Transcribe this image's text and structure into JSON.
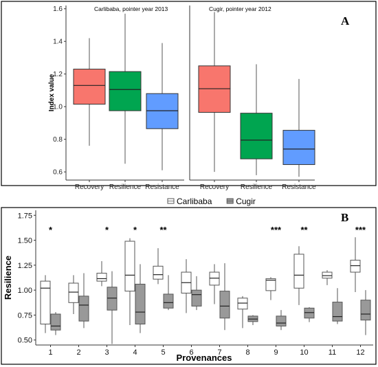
{
  "chart_data": [
    {
      "panel": "A",
      "type": "box",
      "ylabel": "Index value",
      "ylim": [
        0.55,
        1.62
      ],
      "yticks": [
        "0.6",
        "0.8",
        "1.0",
        "1.2",
        "1.4",
        "1.6"
      ],
      "colors": {
        "Recovery": "#f8766d",
        "Resilience": "#00a550",
        "Resistance": "#619cff"
      },
      "groups": [
        {
          "title": "Carlibaba, pointer year 2013",
          "categories": [
            "Recovery",
            "Resilience",
            "Resistance"
          ],
          "boxes": [
            {
              "name": "Recovery",
              "min": 0.76,
              "q1": 1.015,
              "median": 1.13,
              "q3": 1.23,
              "max": 1.42
            },
            {
              "name": "Resilience",
              "min": 0.65,
              "q1": 0.975,
              "median": 1.105,
              "q3": 1.215,
              "max": 1.57
            },
            {
              "name": "Resistance",
              "min": 0.61,
              "q1": 0.865,
              "median": 0.975,
              "q3": 1.08,
              "max": 1.39
            }
          ]
        },
        {
          "title": "Cugir, pointer year 2012",
          "categories": [
            "Recovery",
            "Resilience",
            "Resistance"
          ],
          "boxes": [
            {
              "name": "Recovery",
              "min": 0.6,
              "q1": 0.965,
              "median": 1.11,
              "q3": 1.25,
              "max": 1.58
            },
            {
              "name": "Resilience",
              "min": 0.58,
              "q1": 0.68,
              "median": 0.795,
              "q3": 0.96,
              "max": 1.26
            },
            {
              "name": "Resistance",
              "min": 0.57,
              "q1": 0.645,
              "median": 0.74,
              "q3": 0.855,
              "max": 1.17
            }
          ]
        }
      ]
    },
    {
      "panel": "B",
      "type": "box",
      "xlabel": "Provenances",
      "ylabel": "Resilience",
      "ylim": [
        0.45,
        1.8
      ],
      "yticks": [
        "0.50",
        "0.75",
        "1.00",
        "1.25",
        "1.50",
        "1.75"
      ],
      "categories": [
        "1",
        "2",
        "3",
        "4",
        "5",
        "6",
        "7",
        "8",
        "9",
        "10",
        "11",
        "12"
      ],
      "legend": {
        "position": "top-center",
        "entries": [
          "Carlibaba",
          "Cugir"
        ]
      },
      "colors": {
        "Carlibaba": "#ffffff",
        "Cugir": "#999999"
      },
      "significance": [
        "*",
        "",
        "*",
        "*",
        "**",
        "",
        "",
        "",
        "***",
        "**",
        "",
        "***"
      ],
      "series": [
        {
          "name": "Carlibaba",
          "boxes": [
            {
              "min": 0.57,
              "q1": 0.66,
              "median": 1.02,
              "q3": 1.09,
              "max": 1.15
            },
            {
              "min": 0.76,
              "q1": 0.875,
              "median": 0.98,
              "q3": 1.07,
              "max": 1.15
            },
            {
              "min": 1.04,
              "q1": 1.09,
              "median": 1.115,
              "q3": 1.17,
              "max": 1.29
            },
            {
              "min": 0.65,
              "q1": 0.99,
              "median": 1.15,
              "q3": 1.49,
              "max": 1.52
            },
            {
              "min": 1.06,
              "q1": 1.11,
              "median": 1.155,
              "q3": 1.24,
              "max": 1.42
            },
            {
              "min": 0.77,
              "q1": 0.97,
              "median": 1.075,
              "q3": 1.18,
              "max": 1.31
            },
            {
              "min": 0.86,
              "q1": 1.05,
              "median": 1.12,
              "q3": 1.18,
              "max": 1.26
            },
            {
              "min": 0.62,
              "q1": 0.81,
              "median": 0.87,
              "q3": 0.92,
              "max": 0.94
            },
            {
              "min": 0.9,
              "q1": 0.995,
              "median": 1.1,
              "q3": 1.115,
              "max": 1.13
            },
            {
              "min": 0.85,
              "q1": 1.02,
              "median": 1.15,
              "q3": 1.36,
              "max": 1.44
            },
            {
              "min": 1.05,
              "q1": 1.12,
              "median": 1.145,
              "q3": 1.18,
              "max": 1.2
            },
            {
              "min": 0.98,
              "q1": 1.18,
              "median": 1.245,
              "q3": 1.3,
              "max": 1.53
            }
          ]
        },
        {
          "name": "Cugir",
          "boxes": [
            {
              "min": 0.55,
              "q1": 0.6,
              "median": 0.64,
              "q3": 0.76,
              "max": 0.78
            },
            {
              "min": 0.62,
              "q1": 0.69,
              "median": 0.85,
              "q3": 0.94,
              "max": 1.17
            },
            {
              "min": 0.46,
              "q1": 0.8,
              "median": 0.92,
              "q3": 1.03,
              "max": 1.19
            },
            {
              "min": 0.57,
              "q1": 0.66,
              "median": 0.78,
              "q3": 1.06,
              "max": 1.26
            },
            {
              "min": 0.8,
              "q1": 0.82,
              "median": 0.875,
              "q3": 0.96,
              "max": 1.15
            },
            {
              "min": 0.8,
              "q1": 0.84,
              "median": 0.955,
              "q3": 1.0,
              "max": 1.14
            },
            {
              "min": 0.6,
              "q1": 0.72,
              "median": 0.84,
              "q3": 0.99,
              "max": 1.27
            },
            {
              "min": 0.65,
              "q1": 0.685,
              "median": 0.71,
              "q3": 0.74,
              "max": 0.75
            },
            {
              "min": 0.6,
              "q1": 0.64,
              "median": 0.67,
              "q3": 0.74,
              "max": 0.8
            },
            {
              "min": 0.68,
              "q1": 0.72,
              "median": 0.775,
              "q3": 0.82,
              "max": 0.83
            },
            {
              "min": 0.66,
              "q1": 0.69,
              "median": 0.735,
              "q3": 0.88,
              "max": 1.02
            },
            {
              "min": 0.55,
              "q1": 0.7,
              "median": 0.76,
              "q3": 0.9,
              "max": 1.0
            }
          ]
        }
      ]
    }
  ]
}
